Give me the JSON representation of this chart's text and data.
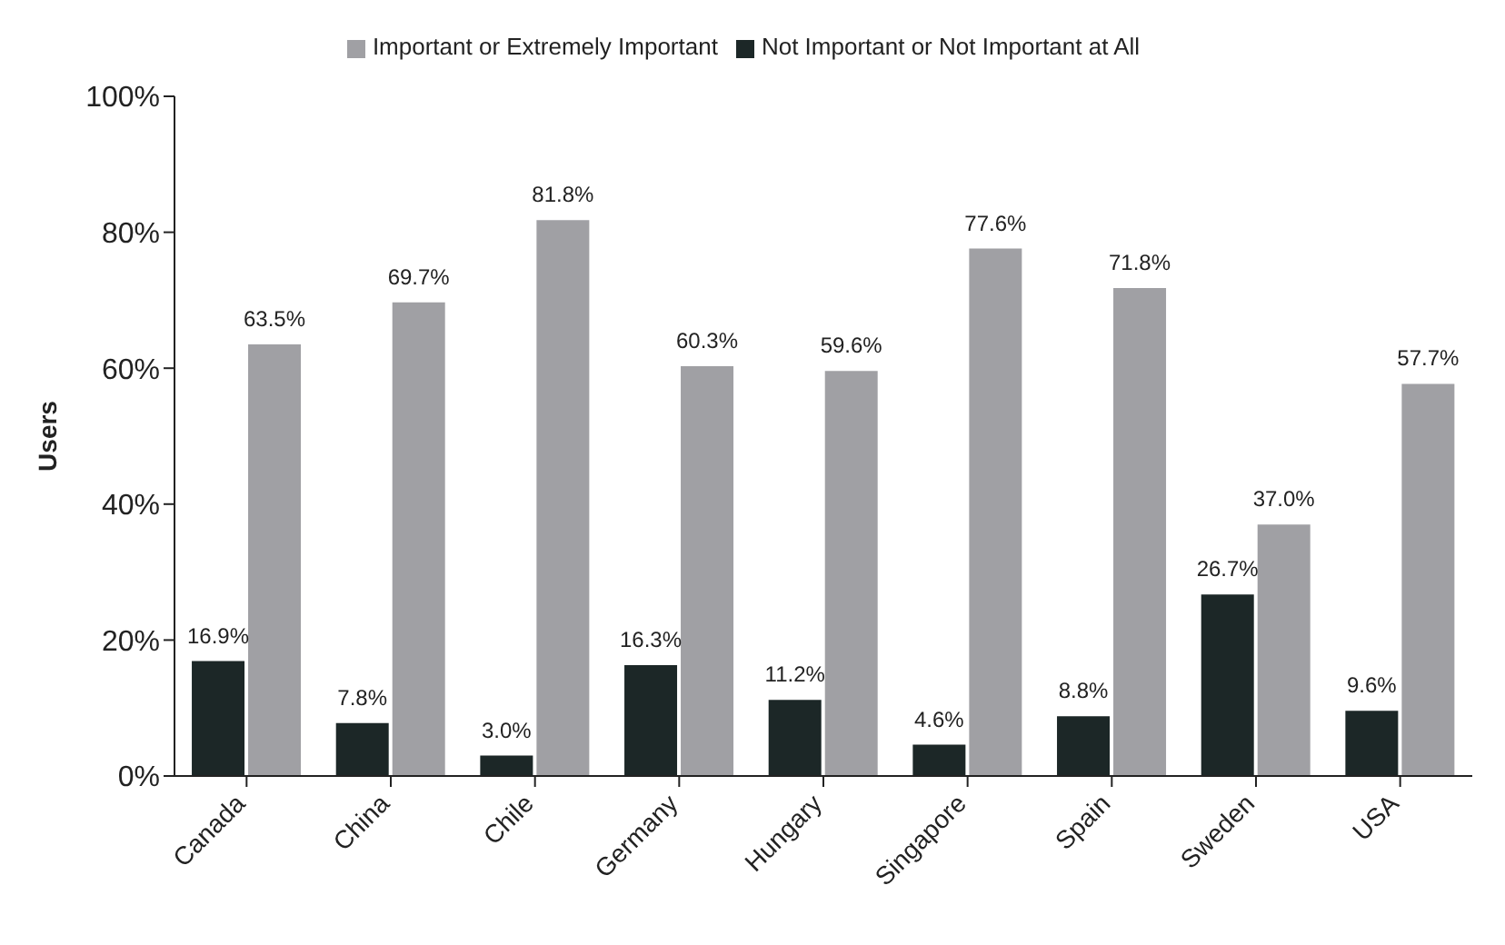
{
  "chart_data": {
    "type": "bar",
    "ylabel": "Users",
    "categories": [
      "Canada",
      "China",
      "Chile",
      "Germany",
      "Hungary",
      "Singapore",
      "Spain",
      "Sweden",
      "USA"
    ],
    "series": [
      {
        "name": "Not Important or Not Important at All",
        "color": "#1c2727",
        "values": [
          16.9,
          7.8,
          3.0,
          16.3,
          11.2,
          4.6,
          8.8,
          26.7,
          9.6
        ],
        "value_labels": [
          "16.9%",
          "7.8%",
          "3.0%",
          "16.3%",
          "11.2%",
          "4.6%",
          "8.8%",
          "26.7%",
          "9.6%"
        ]
      },
      {
        "name": "Important or Extremely Important",
        "color": "#a0a0a4",
        "values": [
          63.5,
          69.7,
          81.8,
          60.3,
          59.6,
          77.6,
          71.8,
          37.0,
          57.7
        ],
        "value_labels": [
          "63.5%",
          "69.7%",
          "81.8%",
          "60.3%",
          "59.6%",
          "77.6%",
          "71.8%",
          "37.0%",
          "57.7%"
        ]
      }
    ],
    "ylim": [
      0,
      100
    ],
    "yticks": [
      {
        "value": 0,
        "label": "0%"
      },
      {
        "value": 20,
        "label": "20%"
      },
      {
        "value": 40,
        "label": "40%"
      },
      {
        "value": 60,
        "label": "60%"
      },
      {
        "value": 80,
        "label": "80%"
      },
      {
        "value": 100,
        "label": "100%"
      }
    ],
    "grid": false,
    "legend": "top"
  }
}
